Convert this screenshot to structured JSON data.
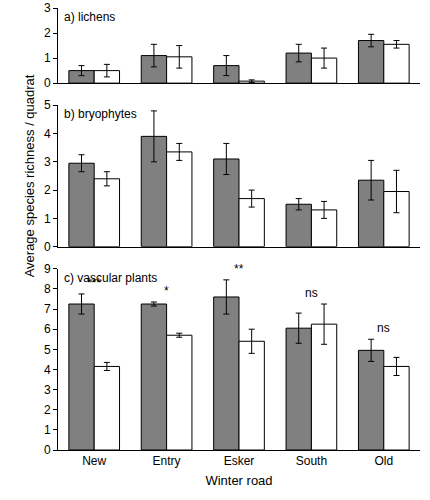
{
  "chart_data": [
    {
      "type": "bar",
      "title": "a) lichens",
      "categories": [
        "New",
        "Entry",
        "Esker",
        "South",
        "Old"
      ],
      "series": [
        {
          "color": "#808080",
          "values": [
            0.5,
            1.1,
            0.7,
            1.2,
            1.7
          ],
          "errors": [
            0.2,
            0.45,
            0.4,
            0.35,
            0.25
          ]
        },
        {
          "color": "#ffffff",
          "values": [
            0.5,
            1.05,
            0.08,
            1.0,
            1.55
          ],
          "errors": [
            0.25,
            0.45,
            0.05,
            0.4,
            0.15
          ]
        }
      ],
      "ylim": [
        0,
        3
      ],
      "yticks": [
        0,
        1,
        2,
        3
      ],
      "grid": false,
      "tick_labels": "y"
    },
    {
      "type": "bar",
      "title": "b) bryophytes",
      "y_label": "Average species richness / quadrat",
      "categories": [
        "New",
        "Entry",
        "Esker",
        "South",
        "Old"
      ],
      "series": [
        {
          "color": "#808080",
          "values": [
            2.95,
            3.9,
            3.1,
            1.5,
            2.35
          ],
          "errors": [
            0.3,
            0.9,
            0.55,
            0.2,
            0.7
          ]
        },
        {
          "color": "#ffffff",
          "values": [
            2.4,
            3.35,
            1.7,
            1.3,
            1.95
          ],
          "errors": [
            0.25,
            0.3,
            0.3,
            0.3,
            0.75
          ]
        }
      ],
      "ylim": [
        0,
        5
      ],
      "yticks": [
        0,
        1,
        2,
        3,
        4,
        5
      ],
      "grid": false,
      "tick_labels": "y"
    },
    {
      "type": "bar",
      "title": "c) vascular plants",
      "x_label": "Winter road",
      "categories": [
        "New",
        "Entry",
        "Esker",
        "South",
        "Old"
      ],
      "series": [
        {
          "color": "#808080",
          "values": [
            7.25,
            7.25,
            7.6,
            6.05,
            4.95
          ],
          "errors": [
            0.5,
            0.1,
            0.85,
            0.75,
            0.55
          ]
        },
        {
          "color": "#ffffff",
          "values": [
            4.15,
            5.7,
            5.4,
            6.25,
            4.15
          ],
          "errors": [
            0.2,
            0.1,
            0.6,
            1.0,
            0.45
          ]
        }
      ],
      "annotations": [
        {
          "category": "New",
          "text": "***"
        },
        {
          "category": "Entry",
          "text": "*"
        },
        {
          "category": "Esker",
          "text": "**"
        },
        {
          "category": "South",
          "text": "ns"
        },
        {
          "category": "Old",
          "text": "ns"
        }
      ],
      "ylim": [
        0,
        9
      ],
      "yticks": [
        0,
        1,
        2,
        3,
        4,
        5,
        6,
        7,
        8,
        9
      ],
      "grid": false
    }
  ]
}
